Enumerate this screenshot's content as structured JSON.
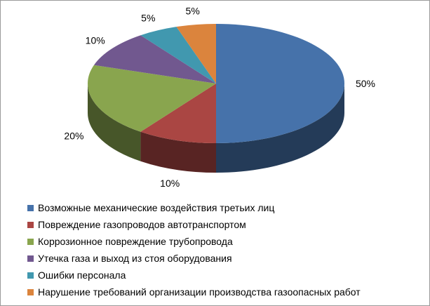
{
  "chart_data": {
    "type": "pie",
    "title": "",
    "categories": [
      "Возможные механические воздействия третьих лиц",
      "Повреждение газопроводов автотранспортом",
      "Коррозионное повреждение трубопровода",
      "Утечка газа и выход из стоя оборудования",
      "Ошибки персонала",
      "Нарушение требований организации производства газоопасных работ"
    ],
    "values": [
      50,
      10,
      20,
      10,
      5,
      5
    ],
    "labels": [
      "50%",
      "10%",
      "20%",
      "10%",
      "5%",
      "5%"
    ],
    "colors": [
      "#4672aa",
      "#aa4643",
      "#89a54e",
      "#71588f",
      "#4198af",
      "#db843d"
    ],
    "legend_position": "bottom",
    "style": "3d"
  }
}
